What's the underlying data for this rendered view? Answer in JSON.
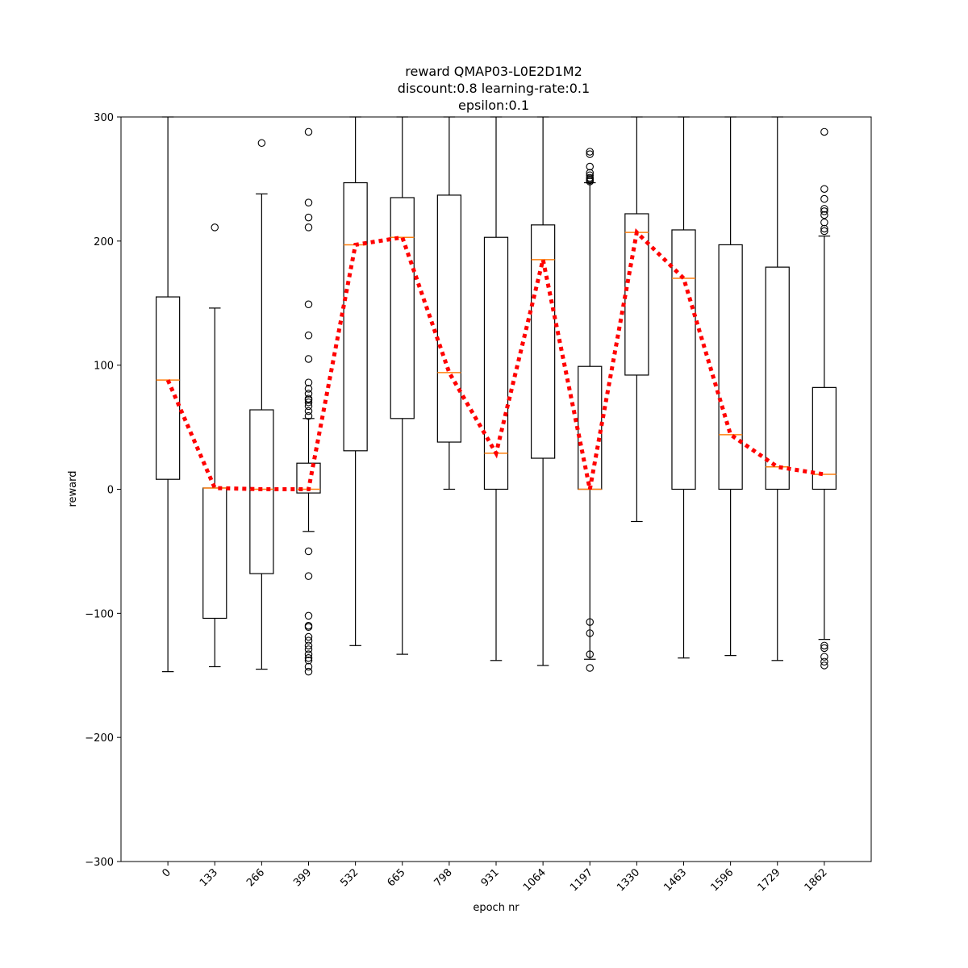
{
  "chart_data": {
    "type": "box",
    "title_lines": [
      "reward QMAP03-L0E2D1M2",
      "discount:0.8 learning-rate:0.1",
      "epsilon:0.1"
    ],
    "xlabel": "epoch nr",
    "ylabel": "reward",
    "ylim": [
      -300,
      300
    ],
    "yticks": [
      -300,
      -200,
      -100,
      0,
      100,
      200,
      300
    ],
    "ytick_labels": [
      "−300",
      "−200",
      "−100",
      "0",
      "100",
      "200",
      "300"
    ],
    "grid": false,
    "categories": [
      "0",
      "133",
      "266",
      "399",
      "532",
      "665",
      "798",
      "931",
      "1064",
      "1197",
      "1330",
      "1463",
      "1596",
      "1729",
      "1862"
    ],
    "boxes": [
      {
        "whisker_low": -147,
        "q1": 8,
        "median": 88,
        "q3": 155,
        "whisker_high": 300,
        "outliers": []
      },
      {
        "whisker_low": -143,
        "q1": -104,
        "median": 1,
        "q3": 1,
        "whisker_high": 146,
        "outliers": [
          211
        ]
      },
      {
        "whisker_low": -145,
        "q1": -68,
        "median": 0,
        "q3": 64,
        "whisker_high": 238,
        "outliers": [
          279
        ]
      },
      {
        "whisker_low": -34,
        "q1": -3,
        "median": 0,
        "q3": 21,
        "whisker_high": 57,
        "outliers": [
          288,
          231,
          219,
          211,
          149,
          124,
          105,
          86,
          81,
          77,
          73,
          72,
          70,
          67,
          63,
          59,
          -50,
          -70,
          -102,
          -110,
          -111,
          -119,
          -122,
          -126,
          -129,
          -133,
          -136,
          -138,
          -143,
          -147
        ]
      },
      {
        "whisker_low": -126,
        "q1": 31,
        "median": 197,
        "q3": 247,
        "whisker_high": 300,
        "outliers": []
      },
      {
        "whisker_low": -133,
        "q1": 57,
        "median": 203,
        "q3": 235,
        "whisker_high": 300,
        "outliers": []
      },
      {
        "whisker_low": 0,
        "q1": 38,
        "median": 94,
        "q3": 237,
        "whisker_high": 300,
        "outliers": []
      },
      {
        "whisker_low": -138,
        "q1": 0,
        "median": 29,
        "q3": 203,
        "whisker_high": 300,
        "outliers": []
      },
      {
        "whisker_low": -142,
        "q1": 25,
        "median": 185,
        "q3": 213,
        "whisker_high": 300,
        "outliers": []
      },
      {
        "whisker_low": -137,
        "q1": 0,
        "median": 0,
        "q3": 99,
        "whisker_high": 247,
        "outliers": [
          272,
          270,
          260,
          255,
          253,
          251,
          250,
          249,
          248,
          -107,
          -116,
          -133,
          -144
        ]
      },
      {
        "whisker_low": -26,
        "q1": 92,
        "median": 207,
        "q3": 222,
        "whisker_high": 300,
        "outliers": []
      },
      {
        "whisker_low": -136,
        "q1": 0,
        "median": 170,
        "q3": 209,
        "whisker_high": 300,
        "outliers": []
      },
      {
        "whisker_low": -134,
        "q1": 0,
        "median": 44,
        "q3": 197,
        "whisker_high": 300,
        "outliers": []
      },
      {
        "whisker_low": -138,
        "q1": 0,
        "median": 18,
        "q3": 179,
        "whisker_high": 300,
        "outliers": []
      },
      {
        "whisker_low": -121,
        "q1": 0,
        "median": 12,
        "q3": 82,
        "whisker_high": 204,
        "outliers": [
          288,
          242,
          234,
          226,
          224,
          221,
          215,
          210,
          208,
          -126,
          -128,
          -135,
          -139,
          -142
        ]
      }
    ],
    "trend_line": {
      "style": "dotted",
      "color": "#ff0000",
      "values": [
        88,
        1,
        0,
        0,
        197,
        203,
        94,
        29,
        185,
        0,
        207,
        170,
        44,
        18,
        12
      ]
    },
    "colors": {
      "box": "#000000",
      "median": "#ff7f0e",
      "trend": "#ff0000",
      "background": "#ffffff"
    }
  }
}
